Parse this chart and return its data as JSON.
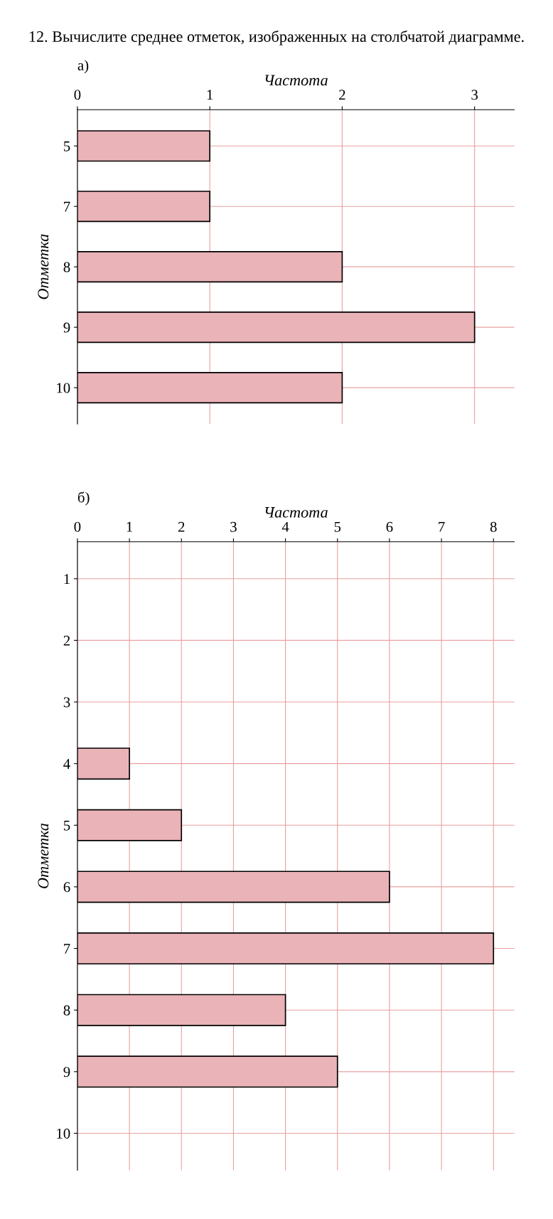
{
  "chart_data": [
    {
      "type": "bar",
      "title": "а)",
      "orientation": "horizontal",
      "xlabel": "Частота",
      "ylabel": "Отметка",
      "categories": [
        "5",
        "7",
        "8",
        "9",
        "10"
      ],
      "values": [
        1,
        1,
        2,
        3,
        2
      ],
      "color": "#eab3b8",
      "xlim": [
        0,
        3.3
      ],
      "xticks": [
        0,
        1,
        2,
        3
      ],
      "grid": true,
      "annotations": [
        "12. Вычислите среднее отметок, изображенных на столбчатой диаграмме."
      ]
    },
    {
      "type": "bar",
      "title": "б)",
      "orientation": "horizontal",
      "xlabel": "Частота",
      "ylabel": "Отметка",
      "categories": [
        "1",
        "2",
        "3",
        "4",
        "5",
        "6",
        "7",
        "8",
        "9",
        "10"
      ],
      "values": [
        null,
        null,
        null,
        1,
        2,
        6,
        8,
        4,
        5,
        null
      ],
      "color": "#eab3b8",
      "xlim": [
        0,
        8.4
      ],
      "xticks": [
        0,
        1,
        2,
        3,
        4,
        5,
        6,
        7,
        8
      ],
      "grid": true
    }
  ]
}
